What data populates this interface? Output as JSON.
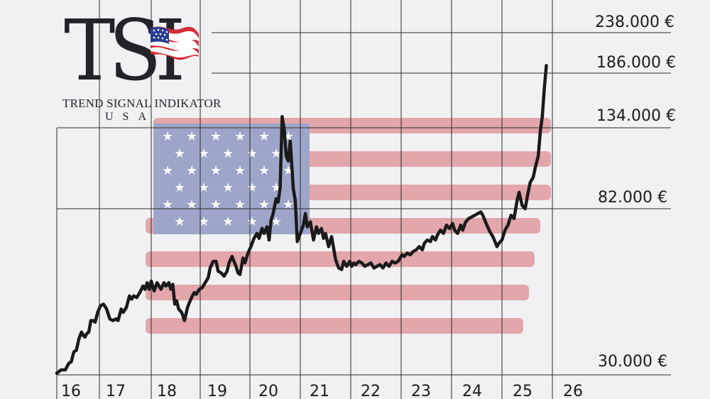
{
  "logo": {
    "title": "TSI",
    "subtitle": "TREND SIGNAL INDIKATOR",
    "country": "USA"
  },
  "colors": {
    "line": "#1a1a1a",
    "grid": "#2a2a2a",
    "flag_red": "#d96a72",
    "flag_blue": "#4b5e9a"
  },
  "chart_data": {
    "type": "line",
    "title": "",
    "xlabel": "",
    "ylabel": "",
    "x_ticks": [
      "16",
      "17",
      "18",
      "19",
      "20",
      "21",
      "22",
      "23",
      "24",
      "25",
      "26"
    ],
    "y_ticks": [
      "238.000 €",
      "186.000 €",
      "134.000 €",
      "82.000 €",
      "30.000 €"
    ],
    "y_tick_values": [
      238000,
      186000,
      134000,
      82000,
      30000
    ],
    "xlim": [
      16,
      26.5
    ],
    "ylim": [
      30000,
      238000
    ],
    "grid": true,
    "series": [
      {
        "values": [
          [
            16.0,
            31000
          ],
          [
            16.1,
            33000
          ],
          [
            16.2,
            33000
          ],
          [
            16.28,
            37000
          ],
          [
            16.34,
            38000
          ],
          [
            16.4,
            44000
          ],
          [
            16.46,
            45000
          ],
          [
            16.52,
            52000
          ],
          [
            16.58,
            56000
          ],
          [
            16.62,
            54000
          ],
          [
            16.66,
            53000
          ],
          [
            16.7,
            55000
          ],
          [
            16.75,
            56000
          ],
          [
            16.8,
            63000
          ],
          [
            16.85,
            63000
          ],
          [
            16.9,
            62000
          ],
          [
            16.96,
            68000
          ],
          [
            17.02,
            72000
          ],
          [
            17.08,
            73000
          ],
          [
            17.14,
            70000
          ],
          [
            17.2,
            64000
          ],
          [
            17.26,
            63000
          ],
          [
            17.32,
            64000
          ],
          [
            17.36,
            63000
          ],
          [
            17.42,
            70000
          ],
          [
            17.46,
            68000
          ],
          [
            17.52,
            71000
          ],
          [
            17.58,
            78000
          ],
          [
            17.62,
            76000
          ],
          [
            17.66,
            78000
          ],
          [
            17.72,
            77000
          ],
          [
            17.78,
            80000
          ],
          [
            17.84,
            84000
          ],
          [
            17.88,
            82000
          ],
          [
            17.92,
            86000
          ],
          [
            17.96,
            82000
          ],
          [
            18.0,
            87000
          ],
          [
            18.06,
            81000
          ],
          [
            18.12,
            86000
          ],
          [
            18.16,
            84000
          ],
          [
            18.2,
            82000
          ],
          [
            18.26,
            86000
          ],
          [
            18.3,
            84000
          ],
          [
            18.36,
            86000
          ],
          [
            18.4,
            82000
          ],
          [
            18.44,
            85000
          ],
          [
            18.48,
            73000
          ],
          [
            18.52,
            75000
          ],
          [
            18.56,
            70000
          ],
          [
            18.62,
            68000
          ],
          [
            18.68,
            63000
          ],
          [
            18.74,
            71000
          ],
          [
            18.78,
            74000
          ],
          [
            18.84,
            78000
          ],
          [
            18.88,
            80000
          ],
          [
            18.92,
            79000
          ],
          [
            18.98,
            82000
          ],
          [
            19.04,
            83000
          ],
          [
            19.1,
            86000
          ],
          [
            19.16,
            89000
          ],
          [
            19.2,
            95000
          ],
          [
            19.26,
            99000
          ],
          [
            19.32,
            99000
          ],
          [
            19.36,
            93000
          ],
          [
            19.42,
            92000
          ],
          [
            19.48,
            90000
          ],
          [
            19.54,
            93000
          ],
          [
            19.58,
            98000
          ],
          [
            19.64,
            102000
          ],
          [
            19.68,
            99000
          ],
          [
            19.72,
            96000
          ],
          [
            19.76,
            92000
          ],
          [
            19.8,
            91000
          ],
          [
            19.86,
            101000
          ],
          [
            19.9,
            98000
          ],
          [
            19.96,
            104000
          ],
          [
            20.02,
            108000
          ],
          [
            20.08,
            113000
          ],
          [
            20.14,
            116000
          ],
          [
            20.18,
            113000
          ],
          [
            20.24,
            119000
          ],
          [
            20.28,
            116000
          ],
          [
            20.34,
            120000
          ],
          [
            20.38,
            112000
          ],
          [
            20.42,
            124000
          ],
          [
            20.46,
            128000
          ],
          [
            20.52,
            137000
          ],
          [
            20.56,
            135000
          ],
          [
            20.6,
            144000
          ],
          [
            20.64,
            187000
          ],
          [
            20.68,
            179000
          ],
          [
            20.72,
            163000
          ],
          [
            20.76,
            160000
          ],
          [
            20.8,
            172000
          ],
          [
            20.86,
            143000
          ],
          [
            20.9,
            136000
          ],
          [
            20.94,
            111000
          ],
          [
            21.0,
            116000
          ],
          [
            21.06,
            121000
          ],
          [
            21.1,
            128000
          ],
          [
            21.14,
            120000
          ],
          [
            21.2,
            123000
          ],
          [
            21.26,
            112000
          ],
          [
            21.32,
            120000
          ],
          [
            21.36,
            116000
          ],
          [
            21.42,
            119000
          ],
          [
            21.46,
            113000
          ],
          [
            21.5,
            116000
          ],
          [
            21.56,
            108000
          ],
          [
            21.62,
            114000
          ],
          [
            21.66,
            107000
          ],
          [
            21.7,
            100000
          ],
          [
            21.76,
            95000
          ],
          [
            21.82,
            94000
          ],
          [
            21.86,
            99000
          ],
          [
            21.92,
            96000
          ],
          [
            21.98,
            99000
          ],
          [
            22.02,
            96000
          ],
          [
            22.06,
            98000
          ],
          [
            22.1,
            97000
          ],
          [
            22.16,
            99000
          ],
          [
            22.22,
            98000
          ],
          [
            22.28,
            96000
          ],
          [
            22.34,
            97000
          ],
          [
            22.4,
            98000
          ],
          [
            22.46,
            95000
          ],
          [
            22.52,
            96000
          ],
          [
            22.58,
            97000
          ],
          [
            22.64,
            95000
          ],
          [
            22.7,
            98000
          ],
          [
            22.76,
            96000
          ],
          [
            22.82,
            99000
          ],
          [
            22.88,
            98000
          ],
          [
            22.94,
            99000
          ],
          [
            22.98,
            101000
          ],
          [
            23.02,
            103000
          ],
          [
            23.06,
            102000
          ],
          [
            23.12,
            104000
          ],
          [
            23.18,
            103000
          ],
          [
            23.24,
            105000
          ],
          [
            23.3,
            106000
          ],
          [
            23.36,
            108000
          ],
          [
            23.42,
            106000
          ],
          [
            23.46,
            110000
          ],
          [
            23.52,
            112000
          ],
          [
            23.58,
            111000
          ],
          [
            23.62,
            114000
          ],
          [
            23.68,
            112000
          ],
          [
            23.72,
            115000
          ],
          [
            23.78,
            118000
          ],
          [
            23.84,
            116000
          ],
          [
            23.9,
            121000
          ],
          [
            23.96,
            119000
          ],
          [
            24.02,
            122000
          ],
          [
            24.06,
            118000
          ],
          [
            24.12,
            116000
          ],
          [
            24.18,
            121000
          ],
          [
            24.22,
            118000
          ],
          [
            24.28,
            123000
          ],
          [
            24.34,
            125000
          ],
          [
            24.4,
            126000
          ],
          [
            24.46,
            127000
          ],
          [
            24.52,
            128000
          ],
          [
            24.58,
            129000
          ],
          [
            24.62,
            127000
          ],
          [
            24.66,
            124000
          ],
          [
            24.7,
            121000
          ],
          [
            24.76,
            117000
          ],
          [
            24.82,
            114000
          ],
          [
            24.86,
            111000
          ],
          [
            24.9,
            108000
          ],
          [
            24.94,
            110000
          ],
          [
            25.0,
            112000
          ],
          [
            25.06,
            118000
          ],
          [
            25.12,
            121000
          ],
          [
            25.18,
            127000
          ],
          [
            25.24,
            125000
          ],
          [
            25.3,
            136000
          ],
          [
            25.34,
            141000
          ],
          [
            25.4,
            133000
          ],
          [
            25.46,
            131000
          ],
          [
            25.5,
            138000
          ],
          [
            25.56,
            147000
          ],
          [
            25.62,
            150000
          ],
          [
            25.66,
            156000
          ],
          [
            25.72,
            163000
          ],
          [
            25.76,
            178000
          ],
          [
            25.8,
            187000
          ],
          [
            25.84,
            204000
          ],
          [
            25.88,
            218000
          ]
        ]
      }
    ]
  }
}
